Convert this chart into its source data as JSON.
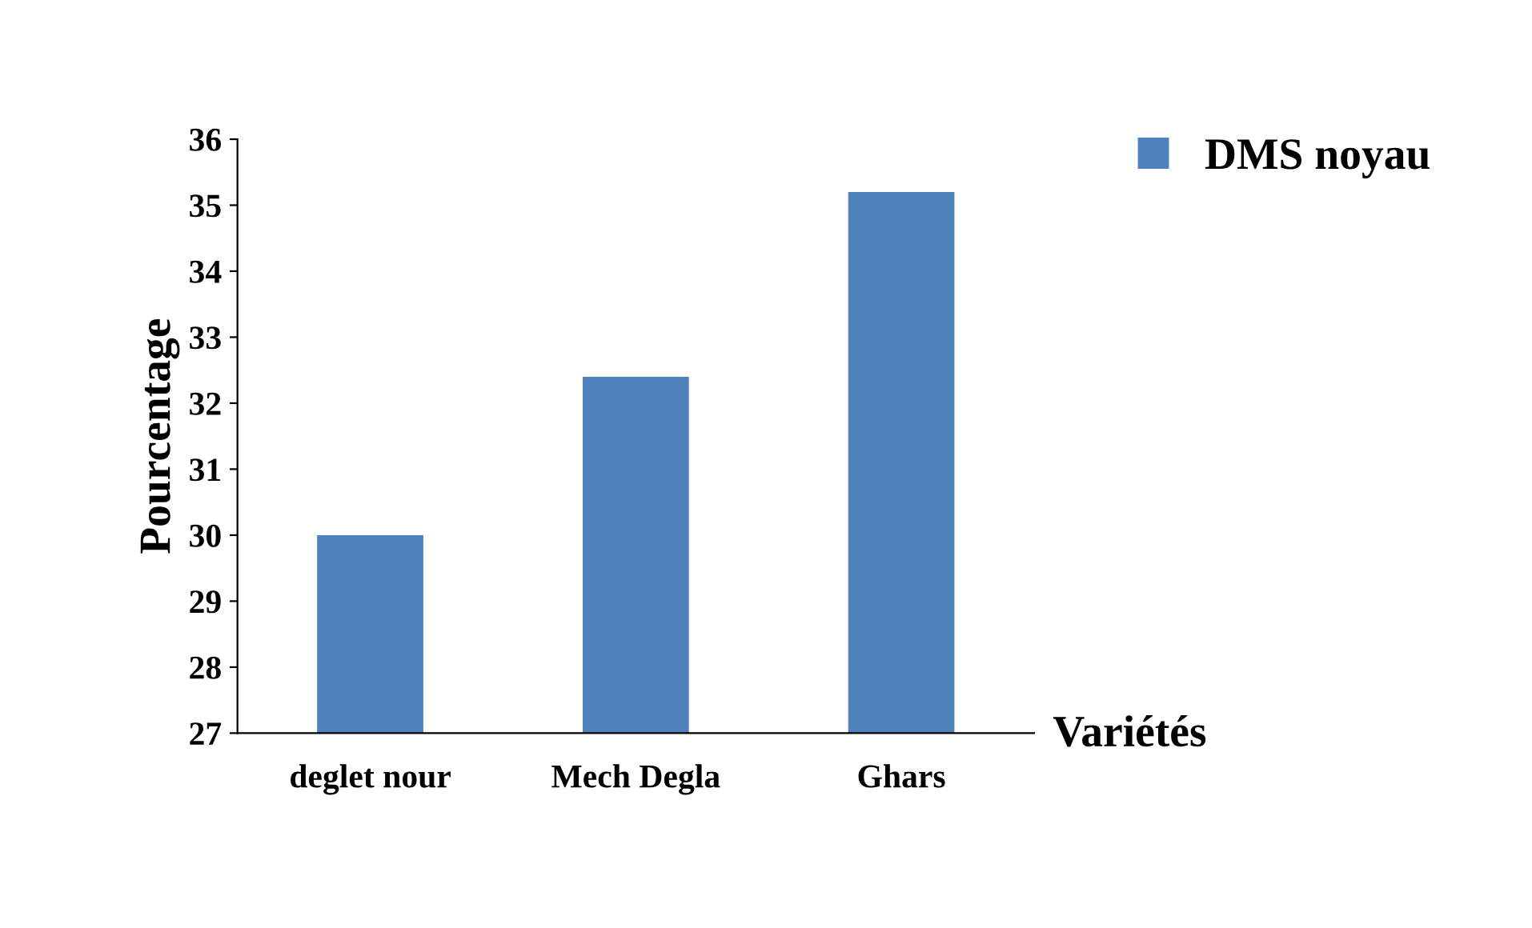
{
  "chart_data": {
    "type": "bar",
    "xlabel": "Variétés",
    "ylabel": "Pourcentage",
    "categories": [
      "deglet nour",
      "Mech Degla",
      "Ghars"
    ],
    "series": [
      {
        "name": "DMS noyau",
        "color": "#4f81bd",
        "values": [
          30.0,
          32.4,
          35.2
        ]
      }
    ],
    "ylim": [
      27,
      36
    ],
    "yticks": [
      27,
      28,
      29,
      30,
      31,
      32,
      33,
      34,
      35,
      36
    ],
    "grid": false,
    "legend": "top right"
  }
}
